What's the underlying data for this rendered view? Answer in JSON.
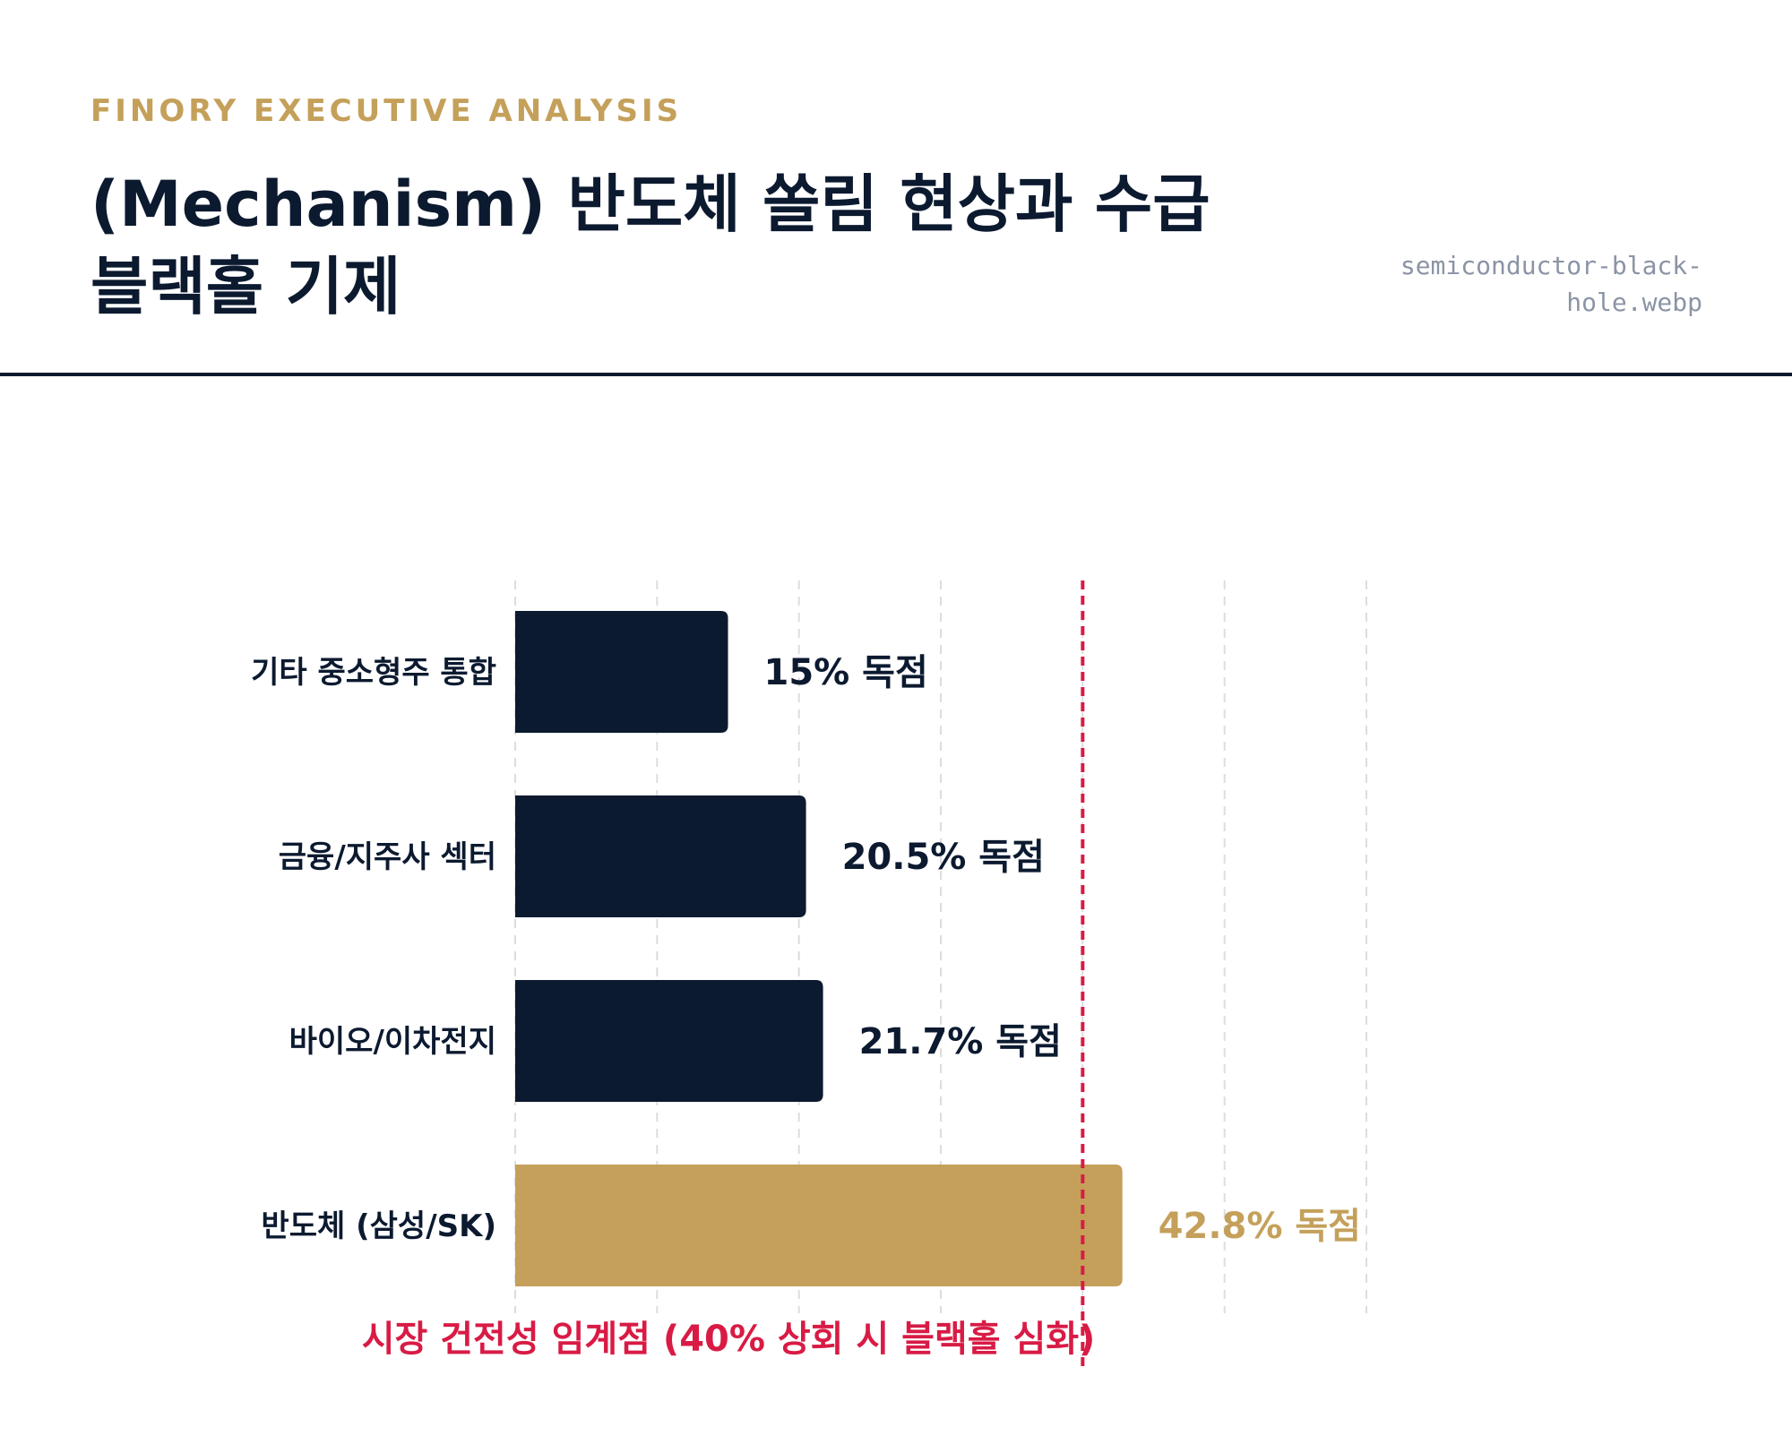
{
  "header": {
    "eyebrow": "FINORY EXECUTIVE ANALYSIS",
    "title_line1": "(Mechanism) 반도체 쏠림 현상과 수급",
    "title_line2": "블랙홀 기제",
    "filename_line1": "semiconductor-black-",
    "filename_line2": "hole.webp"
  },
  "colors": {
    "navy": "#0c1a30",
    "gold": "#c4a05a",
    "threshold": "#d81b45",
    "grid": "#dddddd",
    "muted": "#8b94a5"
  },
  "chart_data": {
    "type": "bar",
    "orientation": "horizontal",
    "categories": [
      "기타 중소형주 통합",
      "금융/지주사 섹터",
      "바이오/이차전지",
      "반도체 (삼성/SK)"
    ],
    "values": [
      15,
      20.5,
      21.7,
      42.8
    ],
    "value_labels": [
      "15% 독점",
      "20.5% 독점",
      "21.7% 독점",
      "42.8% 독점"
    ],
    "highlight_index": 3,
    "xlim": [
      0,
      60
    ],
    "grid": true,
    "threshold": {
      "value": 40,
      "label": "시장 건전성 임계점 (40% 상회 시 블랙홀 심화)"
    }
  }
}
